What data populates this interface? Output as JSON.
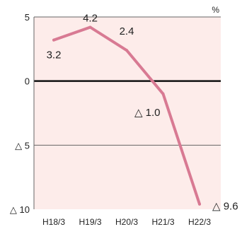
{
  "chart_data": {
    "type": "line",
    "unit_label": "%",
    "categories": [
      "H18/3",
      "H19/3",
      "H20/3",
      "H21/3",
      "H22/3"
    ],
    "values": [
      3.2,
      4.2,
      2.4,
      -1.0,
      -9.6
    ],
    "data_labels": [
      "3.2",
      "4.2",
      "2.4",
      "△ 1.0",
      "△ 9.6"
    ],
    "ylim": [
      -10,
      5
    ],
    "y_ticks": [
      {
        "value": 5,
        "label": "5"
      },
      {
        "value": 0,
        "label": "0"
      },
      {
        "value": -5,
        "label": "△ 5"
      },
      {
        "value": -10,
        "label": "△ 10"
      }
    ],
    "grid": true,
    "colors": {
      "plot_background": "#fdecea",
      "line": "#d87a93",
      "zero_line": "#111111",
      "gridline": "#666666"
    }
  }
}
